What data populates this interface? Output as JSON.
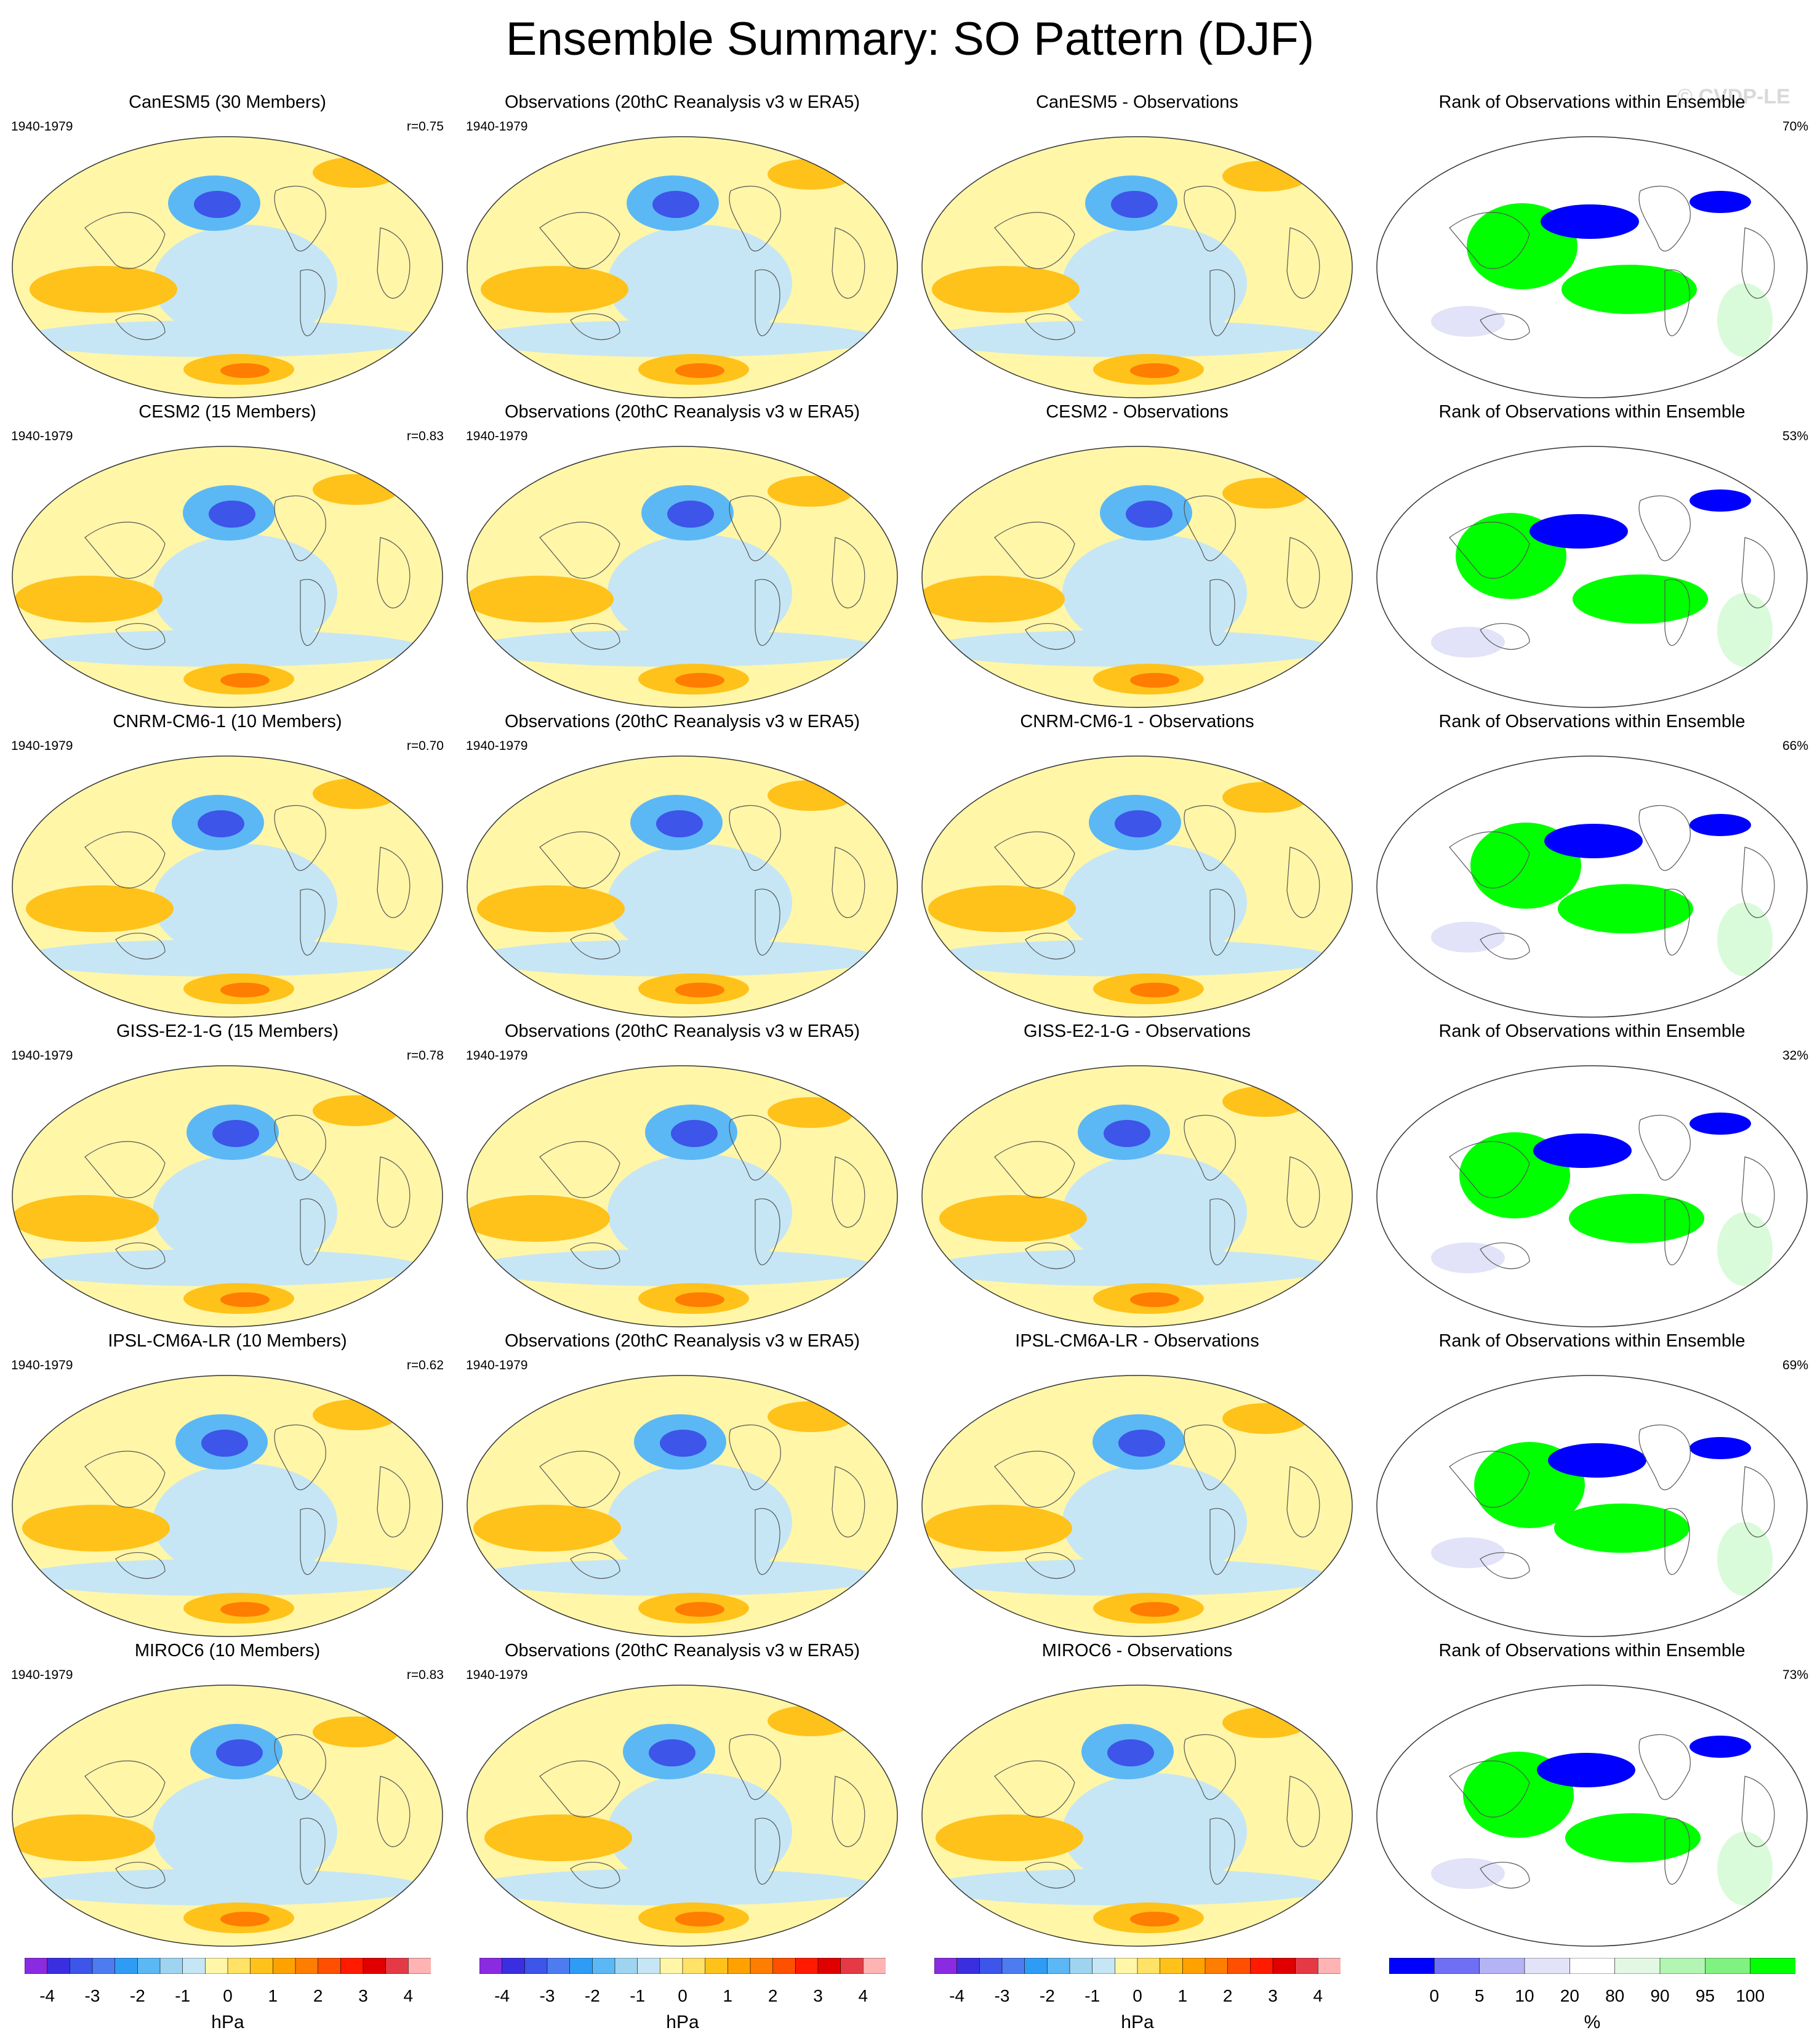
{
  "title": "Ensemble Summary: SO Pattern (DJF)",
  "watermark": "© CVDP-LE",
  "rows": [
    {
      "model_title": "CanESM5 (30 Members)",
      "period": "1940-1979",
      "r": "r=0.75",
      "obs_title": "Observations (20thC Reanalysis v3 w ERA5)",
      "obs_period": "1940-1979",
      "diff_title": "CanESM5 - Observations",
      "rank_title": "Rank of Observations within Ensemble",
      "rank_pct": "70%"
    },
    {
      "model_title": "CESM2 (15 Members)",
      "period": "1940-1979",
      "r": "r=0.83",
      "obs_title": "Observations (20thC Reanalysis v3 w ERA5)",
      "obs_period": "1940-1979",
      "diff_title": "CESM2 - Observations",
      "rank_title": "Rank of Observations within Ensemble",
      "rank_pct": "53%"
    },
    {
      "model_title": "CNRM-CM6-1 (10 Members)",
      "period": "1940-1979",
      "r": "r=0.70",
      "obs_title": "Observations (20thC Reanalysis v3 w ERA5)",
      "obs_period": "1940-1979",
      "diff_title": "CNRM-CM6-1 - Observations",
      "rank_title": "Rank of Observations within Ensemble",
      "rank_pct": "66%"
    },
    {
      "model_title": "GISS-E2-1-G (15 Members)",
      "period": "1940-1979",
      "r": "r=0.78",
      "obs_title": "Observations (20thC Reanalysis v3 w ERA5)",
      "obs_period": "1940-1979",
      "diff_title": "GISS-E2-1-G - Observations",
      "rank_title": "Rank of Observations within Ensemble",
      "rank_pct": "32%"
    },
    {
      "model_title": "IPSL-CM6A-LR (10 Members)",
      "period": "1940-1979",
      "r": "r=0.62",
      "obs_title": "Observations (20thC Reanalysis v3 w ERA5)",
      "obs_period": "1940-1979",
      "diff_title": "IPSL-CM6A-LR - Observations",
      "rank_title": "Rank of Observations within Ensemble",
      "rank_pct": "69%"
    },
    {
      "model_title": "MIROC6 (10 Members)",
      "period": "1940-1979",
      "r": "r=0.83",
      "obs_title": "Observations (20thC Reanalysis v3 w ERA5)",
      "obs_period": "1940-1979",
      "diff_title": "MIROC6 - Observations",
      "rank_title": "Rank of Observations within Ensemble",
      "rank_pct": "73%"
    }
  ],
  "colorbars": {
    "pressure": {
      "ticks": [
        "-4",
        "-3",
        "-2",
        "-1",
        "0",
        "1",
        "2",
        "3",
        "4"
      ],
      "unit": "hPa",
      "colors": [
        "#8a2be2",
        "#3a2fe0",
        "#3d55e8",
        "#4c7cf0",
        "#2e9cf5",
        "#5bb8f5",
        "#9fd4f0",
        "#c6e6f5",
        "#fff6a8",
        "#ffe266",
        "#ffc21a",
        "#ffa200",
        "#ff7d00",
        "#ff5000",
        "#ff1a00",
        "#e00000",
        "#e63946",
        "#ffb3b3"
      ]
    },
    "rank": {
      "ticks": [
        "0",
        "5",
        "10",
        "20",
        "80",
        "90",
        "95",
        "100"
      ],
      "unit": "%",
      "colors": [
        "#0000ff",
        "#6f6ff5",
        "#b3b3f5",
        "#e2e2f8",
        "#ffffff",
        "#e2f8e2",
        "#b3f5b3",
        "#7ff27f",
        "#00ff00"
      ]
    }
  }
}
